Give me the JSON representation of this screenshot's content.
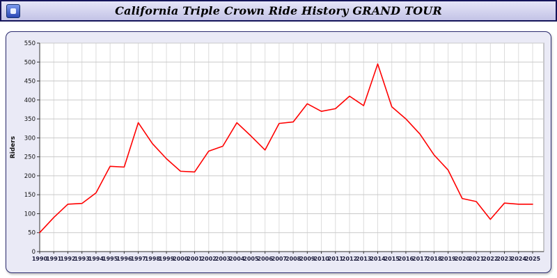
{
  "header": {
    "title": "California Triple Crown Ride History GRAND TOUR",
    "icon": "app-icon"
  },
  "chart_data": {
    "type": "line",
    "title": "California Triple Crown Ride History GRAND TOUR",
    "xlabel": "",
    "ylabel": "Riders",
    "ylim": [
      0,
      550
    ],
    "ytick_step": 50,
    "y_ticks": [
      0,
      50,
      100,
      150,
      200,
      250,
      300,
      350,
      400,
      450,
      500,
      550
    ],
    "grid": true,
    "legend": "none",
    "line_color": "#ff0000",
    "x": [
      1990,
      1991,
      1992,
      1993,
      1994,
      1995,
      1996,
      1997,
      1998,
      1999,
      2000,
      2001,
      2002,
      2003,
      2004,
      2005,
      2006,
      2007,
      2008,
      2009,
      2010,
      2011,
      2012,
      2013,
      2014,
      2015,
      2016,
      2017,
      2018,
      2019,
      2020,
      2021,
      2022,
      2023,
      2024,
      2025
    ],
    "values": [
      50,
      90,
      125,
      127,
      155,
      225,
      223,
      340,
      285,
      245,
      212,
      210,
      265,
      278,
      340,
      305,
      268,
      338,
      342,
      390,
      370,
      377,
      410,
      385,
      495,
      382,
      350,
      310,
      255,
      215,
      140,
      132,
      85,
      128,
      125,
      125
    ]
  }
}
